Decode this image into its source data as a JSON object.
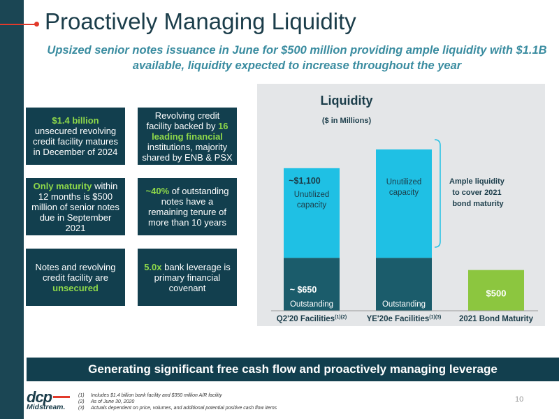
{
  "slide": {
    "title": "Proactively Managing Liquidity",
    "subtitle": "Upsized senior notes issuance in June for $500 million providing ample liquidity with $1.1B available, liquidity expected to increase throughout the year",
    "page_number": "10",
    "banner": "Generating significant free cash flow and proactively managing leverage"
  },
  "boxes": [
    {
      "highlight": "$1.4 billion",
      "text": " unsecured revolving credit facility matures in December of 2024"
    },
    {
      "pre": "Revolving credit facility backed by ",
      "highlight": "16 leading financial",
      "text": " institutions, majority shared by ENB & PSX"
    },
    {
      "highlight": "Only maturity",
      "text": " within 12 months is $500 million of senior notes due in September 2021"
    },
    {
      "highlight": "~40%",
      "text": " of outstanding notes have a remaining tenure of more than 10 years"
    },
    {
      "pre": "Notes and revolving credit facility are ",
      "highlight": "unsecured",
      "text": ""
    },
    {
      "highlight": "5.0x",
      "text": " bank leverage is primary financial covenant"
    }
  ],
  "chart_data": {
    "type": "bar",
    "stacked": true,
    "title": "Liquidity",
    "subtitle": "($ in Millions)",
    "categories": [
      "Q2'20 Facilities",
      "YE'20e Facilities",
      "2021 Bond Maturity"
    ],
    "category_superscripts": [
      "(1)(2)",
      "(1)(3)",
      ""
    ],
    "series": [
      {
        "name": "Outstanding",
        "values": [
          650,
          650,
          500
        ],
        "colors": [
          "#1b5c6b",
          "#1b5c6b",
          "#8cc63f"
        ]
      },
      {
        "name": "Unutilized capacity",
        "values": [
          1100,
          1330,
          0
        ],
        "colors": [
          "#1fc0e4",
          "#1fc0e4",
          "#1fc0e4"
        ]
      }
    ],
    "bar_labels": {
      "q2_unutilized_value": "~$1,100",
      "unutilized_label_line1": "Unutilized",
      "unutilized_label_line2": "capacity",
      "q2_outstanding_value": "~ $650",
      "outstanding_label": "Outstanding",
      "bond_value": "$500"
    },
    "annotation": [
      "Ample liquidity",
      "to cover 2021",
      "bond maturity"
    ],
    "ylim": [
      0,
      2100
    ],
    "grid": false,
    "legend": "none"
  },
  "footnotes": [
    {
      "n": "(1)",
      "text": "Includes $1.4 billion bank facility and $350 million A/R facility"
    },
    {
      "n": "(2)",
      "text": "As of June 30, 2020"
    },
    {
      "n": "(3)",
      "text": "Actuals dependent on price, volumes, and additional potential positive cash flow items"
    }
  ],
  "logo": {
    "mark": "dcp",
    "word": "Midstream."
  },
  "colors": {
    "navy": "#123f4e",
    "accent_green": "#8ed84a",
    "accent_red": "#e23a2b",
    "subtitle_teal": "#3a8ca0",
    "bar_light": "#1fc0e4",
    "bar_dark": "#1b5c6b",
    "bar_green": "#8cc63f"
  }
}
